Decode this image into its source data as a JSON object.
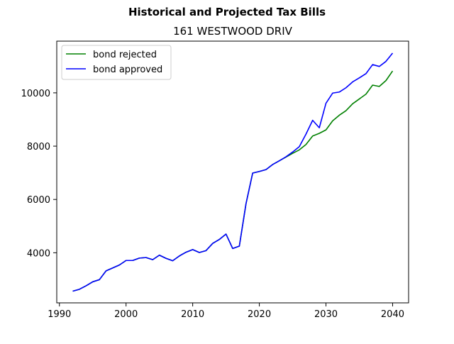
{
  "chart_data": {
    "type": "line",
    "suptitle": "Historical and Projected Tax Bills",
    "title": "161 WESTWOOD DRIV",
    "xlabel": "",
    "ylabel": "",
    "xlim": [
      1989.6,
      2042.4
    ],
    "ylim": [
      2120,
      11940
    ],
    "xticks": [
      1990,
      2000,
      2010,
      2020,
      2030,
      2040
    ],
    "xtick_labels": [
      "1990",
      "2000",
      "2010",
      "2020",
      "2030",
      "2040"
    ],
    "yticks": [
      4000,
      6000,
      8000,
      10000
    ],
    "ytick_labels": [
      "4000",
      "6000",
      "8000",
      "10000"
    ],
    "grid": false,
    "legend_position": "upper-left",
    "series": [
      {
        "name": "bond rejected",
        "color": "#008000",
        "x": [
          1992,
          1993,
          1994,
          1995,
          1996,
          1997,
          1998,
          1999,
          2000,
          2001,
          2002,
          2003,
          2004,
          2005,
          2006,
          2007,
          2008,
          2009,
          2010,
          2011,
          2012,
          2013,
          2014,
          2015,
          2016,
          2017,
          2018,
          2019,
          2020,
          2021,
          2022,
          2023,
          2024,
          2025,
          2026,
          2027,
          2028,
          2029,
          2030,
          2031,
          2032,
          2033,
          2034,
          2035,
          2036,
          2037,
          2038,
          2039,
          2040
        ],
        "y": [
          2560,
          2630,
          2760,
          2910,
          2990,
          3320,
          3430,
          3540,
          3710,
          3710,
          3800,
          3820,
          3740,
          3910,
          3790,
          3700,
          3880,
          4020,
          4120,
          4010,
          4080,
          4350,
          4500,
          4700,
          4160,
          4250,
          5840,
          6990,
          7050,
          7120,
          7310,
          7450,
          7590,
          7730,
          7860,
          8060,
          8380,
          8480,
          8610,
          8950,
          9160,
          9330,
          9590,
          9770,
          9950,
          10290,
          10240,
          10460,
          10820
        ]
      },
      {
        "name": "bond approved",
        "color": "#0000ff",
        "x": [
          1992,
          1993,
          1994,
          1995,
          1996,
          1997,
          1998,
          1999,
          2000,
          2001,
          2002,
          2003,
          2004,
          2005,
          2006,
          2007,
          2008,
          2009,
          2010,
          2011,
          2012,
          2013,
          2014,
          2015,
          2016,
          2017,
          2018,
          2019,
          2020,
          2021,
          2022,
          2023,
          2024,
          2025,
          2026,
          2027,
          2028,
          2029,
          2030,
          2031,
          2032,
          2033,
          2034,
          2035,
          2036,
          2037,
          2038,
          2039,
          2040
        ],
        "y": [
          2560,
          2630,
          2760,
          2910,
          2990,
          3320,
          3430,
          3540,
          3710,
          3710,
          3800,
          3820,
          3740,
          3910,
          3790,
          3700,
          3880,
          4020,
          4120,
          4010,
          4080,
          4350,
          4500,
          4700,
          4160,
          4250,
          5840,
          6990,
          7050,
          7120,
          7310,
          7450,
          7600,
          7780,
          7980,
          8450,
          8970,
          8690,
          9610,
          9990,
          10030,
          10190,
          10410,
          10560,
          10720,
          11060,
          10990,
          11180,
          11490
        ]
      }
    ]
  }
}
